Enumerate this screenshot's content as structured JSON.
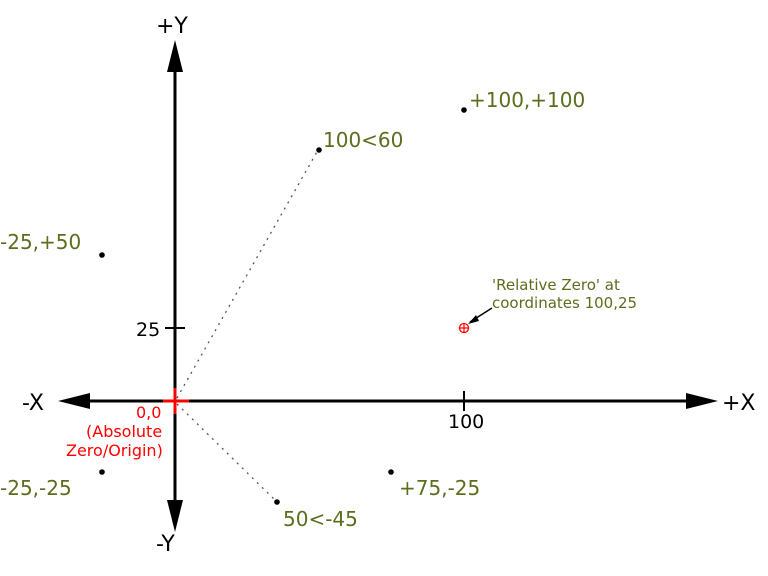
{
  "colors": {
    "axis": "#000000",
    "point_label": "#5a6e1e",
    "origin": "#ff0000",
    "relative_zero": "#ff0000",
    "dotted_line": "#555555"
  },
  "axes": {
    "pos_y": "+Y",
    "neg_y": "-Y",
    "pos_x": "+X",
    "neg_x": "-X",
    "tick_y": "25",
    "tick_x": "100"
  },
  "origin": {
    "coords": "0,0",
    "line1": "(Absolute",
    "line2": "Zero/Origin)"
  },
  "points": [
    {
      "label": "+100,+100"
    },
    {
      "label": "100<60"
    },
    {
      "label": "-25,+50"
    },
    {
      "label": "-25,-25"
    },
    {
      "label": "50<-45"
    },
    {
      "label": "+75,-25"
    }
  ],
  "relative_zero": {
    "line1": "'Relative Zero' at",
    "line2": "coordinates 100,25"
  }
}
